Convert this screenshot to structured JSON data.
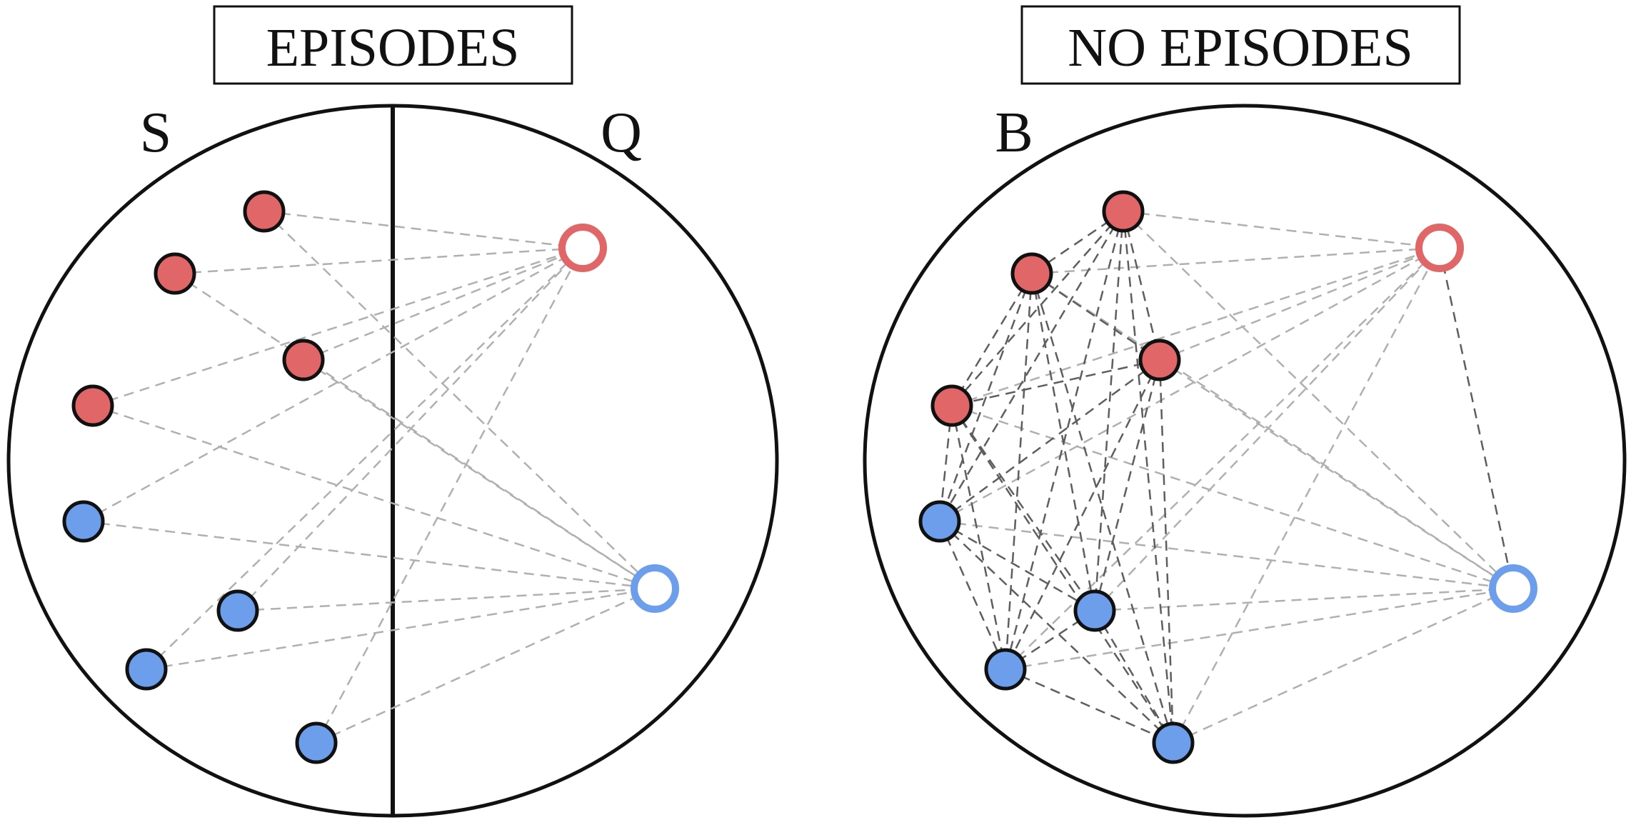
{
  "colors": {
    "red_fill": "#e06668",
    "blue_fill": "#6d9eeb",
    "outline": "#111111",
    "light_edge": "#b0b0b0",
    "dark_edge": "#5e5e5e"
  },
  "panels": [
    {
      "id": "episodes",
      "title": "EPISODES",
      "labels": [
        "S",
        "Q"
      ],
      "split": true,
      "support_points": [
        {
          "cls": "red"
        },
        {
          "cls": "red"
        },
        {
          "cls": "red"
        },
        {
          "cls": "red"
        },
        {
          "cls": "blue"
        },
        {
          "cls": "blue"
        },
        {
          "cls": "blue"
        },
        {
          "cls": "blue"
        }
      ],
      "query_points": [
        {
          "cls": "red",
          "hollow": true
        },
        {
          "cls": "blue",
          "hollow": true
        }
      ],
      "edges": "support-to-query"
    },
    {
      "id": "no-episodes",
      "title": "NO EPISODES",
      "labels": [
        "B"
      ],
      "split": false,
      "support_points": [
        {
          "cls": "red"
        },
        {
          "cls": "red"
        },
        {
          "cls": "red"
        },
        {
          "cls": "red"
        },
        {
          "cls": "blue"
        },
        {
          "cls": "blue"
        },
        {
          "cls": "blue"
        },
        {
          "cls": "blue"
        }
      ],
      "query_points": [
        {
          "cls": "red",
          "hollow": true
        },
        {
          "cls": "blue",
          "hollow": true
        }
      ],
      "edges": "all-pairs"
    }
  ]
}
